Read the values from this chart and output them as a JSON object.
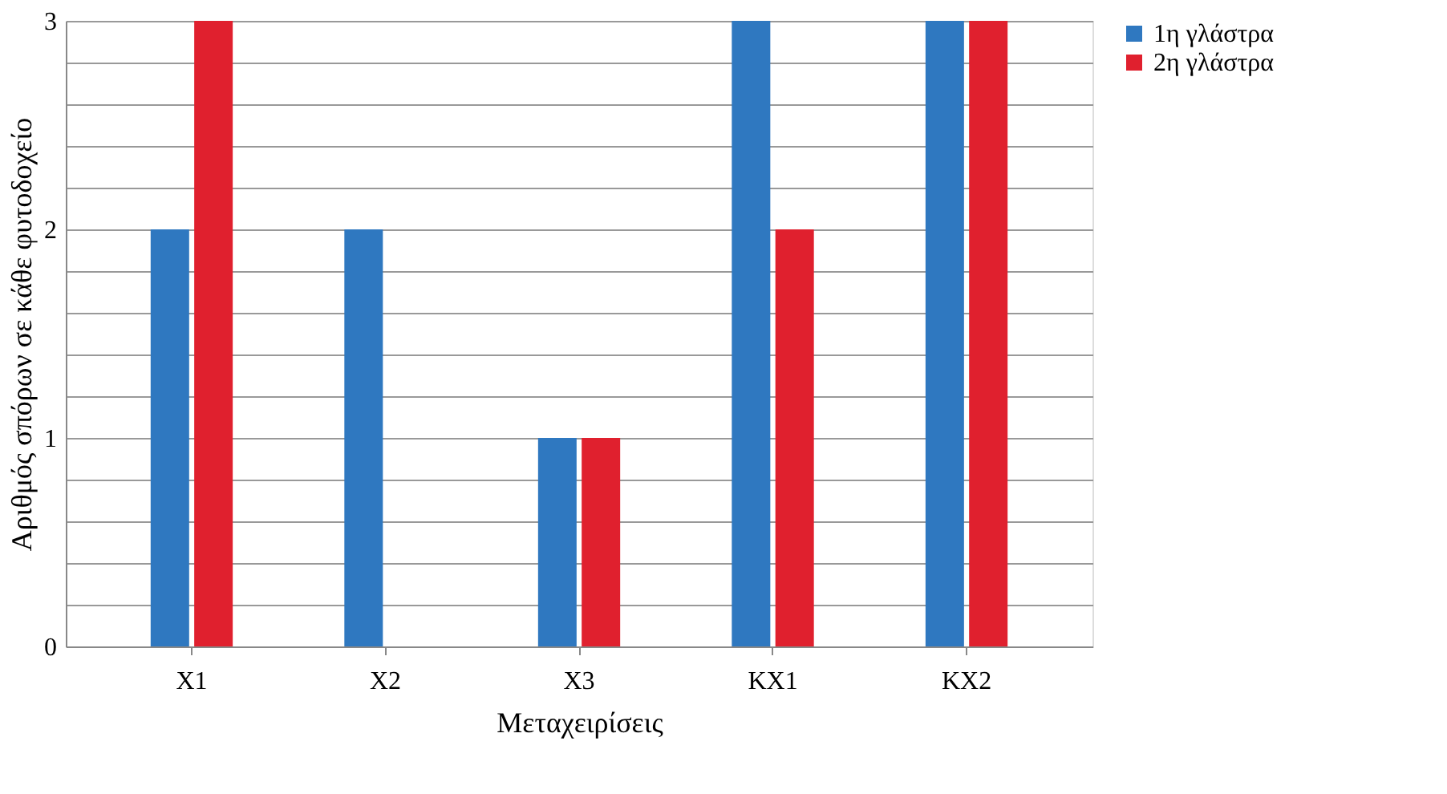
{
  "chart_data": {
    "type": "bar",
    "xlabel": "Μεταχειρίσεις",
    "ylabel": "Αριθμός σπόρων σε κάθε φυτοδοχείο",
    "categories": [
      "Χ1",
      "Χ2",
      "Χ3",
      "ΚΧ1",
      "ΚΧ2"
    ],
    "series": [
      {
        "name": "1η γλάστρα",
        "color": "#2f78c0",
        "values": [
          2,
          2,
          1,
          3,
          3
        ]
      },
      {
        "name": "2η γλάστρα",
        "color": "#e0202e",
        "values": [
          3,
          0,
          1,
          2,
          3
        ]
      }
    ],
    "ylim": [
      0,
      3
    ],
    "yticks": [
      0,
      {
        "value": 0.2,
        "label": null
      },
      {
        "value": 0.4,
        "label": null
      },
      {
        "value": 0.6,
        "label": null
      },
      {
        "value": 0.8,
        "label": null
      },
      1,
      {
        "value": 1.2,
        "label": null
      },
      {
        "value": 1.4,
        "label": null
      },
      {
        "value": 1.6,
        "label": null
      },
      {
        "value": 1.8,
        "label": null
      },
      2,
      {
        "value": 2.2,
        "label": null
      },
      {
        "value": 2.4,
        "label": null
      },
      {
        "value": 2.6,
        "label": null
      },
      {
        "value": 2.8,
        "label": null
      },
      3
    ],
    "grid": "y",
    "legend": "right"
  }
}
